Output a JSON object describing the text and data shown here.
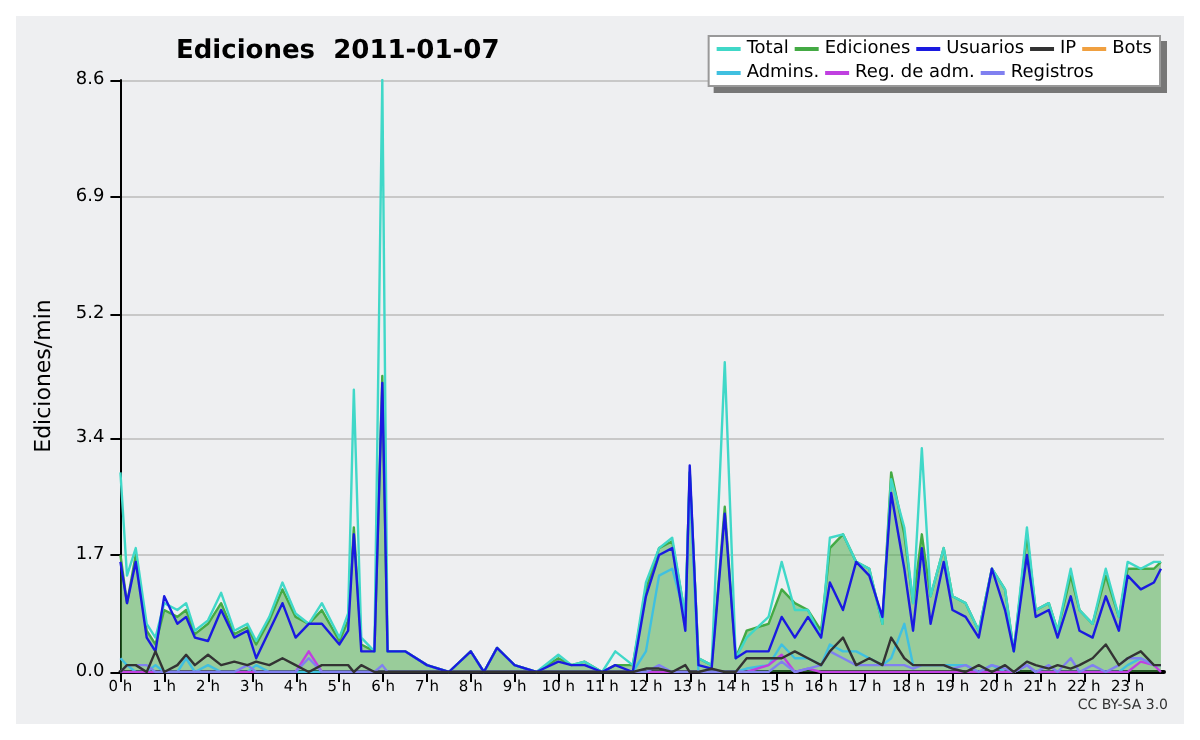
{
  "chart_data": {
    "type": "line",
    "title": "Ediciones  2011-01-07",
    "ylabel": "Ediciones/min",
    "marker": "none",
    "grid": "y",
    "legend": "top right",
    "annotations": [
      "CC BY-SA 3.0"
    ],
    "xlim": [
      0,
      23.83
    ],
    "xticks": [
      {
        "value": 0,
        "label": "0 h"
      },
      {
        "value": 1,
        "label": "1 h"
      },
      {
        "value": 2,
        "label": "2 h"
      },
      {
        "value": 3,
        "label": "3 h"
      },
      {
        "value": 4,
        "label": "4 h"
      },
      {
        "value": 5,
        "label": "5 h"
      },
      {
        "value": 6,
        "label": "6 h"
      },
      {
        "value": 7,
        "label": "7 h"
      },
      {
        "value": 8,
        "label": "8 h"
      },
      {
        "value": 9,
        "label": "9 h"
      },
      {
        "value": 10,
        "label": "10 h"
      },
      {
        "value": 11,
        "label": "11 h"
      },
      {
        "value": 12,
        "label": "12 h"
      },
      {
        "value": 13,
        "label": "13 h"
      },
      {
        "value": 14,
        "label": "14 h"
      },
      {
        "value": 15,
        "label": "15 h"
      },
      {
        "value": 16,
        "label": "16 h"
      },
      {
        "value": 17,
        "label": "17 h"
      },
      {
        "value": 18,
        "label": "18 h"
      },
      {
        "value": 19,
        "label": "19 h"
      },
      {
        "value": 20,
        "label": "20 h"
      },
      {
        "value": 21,
        "label": "21 h"
      },
      {
        "value": 22,
        "label": "22 h"
      },
      {
        "value": 23,
        "label": "23 h"
      }
    ],
    "ylim": [
      0,
      8.6
    ],
    "yticks": [
      {
        "value": 0,
        "label": "0.0"
      },
      1.7,
      3.4,
      5.2,
      6.9,
      8.6
    ],
    "x": [
      0,
      0.15,
      0.35,
      0.6,
      0.8,
      1.0,
      1.3,
      1.5,
      1.7,
      2.0,
      2.3,
      2.6,
      2.9,
      3.1,
      3.4,
      3.7,
      4.0,
      4.3,
      4.6,
      5.0,
      5.2,
      5.33,
      5.5,
      5.8,
      5.98,
      6.1,
      6.5,
      7.0,
      7.5,
      8.0,
      8.3,
      8.6,
      9.0,
      9.5,
      10.0,
      10.3,
      10.6,
      11.0,
      11.3,
      11.7,
      12.0,
      12.3,
      12.6,
      12.9,
      13.0,
      13.2,
      13.5,
      13.8,
      14.05,
      14.3,
      14.8,
      15.1,
      15.4,
      15.7,
      16.0,
      16.2,
      16.5,
      16.8,
      17.1,
      17.4,
      17.6,
      17.9,
      18.1,
      18.3,
      18.5,
      18.8,
      19.0,
      19.3,
      19.6,
      19.9,
      20.2,
      20.4,
      20.7,
      20.9,
      21.2,
      21.4,
      21.7,
      21.9,
      22.2,
      22.5,
      22.8,
      23.0,
      23.3,
      23.6,
      23.76
    ],
    "series": [
      {
        "name": "Ediciones",
        "type": "area",
        "color": "#44aa44",
        "values": [
          1.7,
          1.0,
          1.7,
          0.6,
          0.4,
          0.9,
          0.8,
          0.9,
          0.55,
          0.7,
          1.0,
          0.55,
          0.65,
          0.4,
          0.75,
          1.2,
          0.8,
          0.7,
          0.9,
          0.45,
          0.75,
          2.1,
          0.4,
          0.3,
          4.3,
          0.3,
          0.3,
          0.1,
          0,
          0.3,
          0,
          0.35,
          0.1,
          0,
          0.2,
          0.1,
          0.15,
          0,
          0.1,
          0.1,
          1.2,
          1.8,
          1.9,
          0.8,
          2.9,
          0.2,
          0.1,
          2.4,
          0.2,
          0.6,
          0.7,
          1.2,
          1.0,
          0.9,
          0.6,
          1.8,
          2.0,
          1.6,
          1.5,
          0.7,
          2.9,
          2.0,
          1.0,
          2.0,
          1.1,
          1.8,
          1.1,
          1.0,
          0.6,
          1.5,
          1.2,
          0.3,
          2.0,
          0.9,
          1.0,
          0.6,
          1.4,
          0.9,
          0.7,
          1.4,
          0.8,
          1.5,
          1.5,
          1.5,
          1.6
        ]
      },
      {
        "name": "Total",
        "color": "#40d8c8",
        "values": [
          2.9,
          1.4,
          1.8,
          0.7,
          0.5,
          1.0,
          0.9,
          1.0,
          0.6,
          0.75,
          1.15,
          0.6,
          0.7,
          0.45,
          0.8,
          1.3,
          0.85,
          0.7,
          1.0,
          0.5,
          0.85,
          4.1,
          0.5,
          0.3,
          8.6,
          0.3,
          0.3,
          0.1,
          0,
          0.3,
          0,
          0.35,
          0.1,
          0,
          0.25,
          0.1,
          0.15,
          0,
          0.3,
          0.1,
          1.3,
          1.8,
          1.95,
          0.8,
          2.9,
          0.2,
          0.1,
          4.5,
          0.2,
          0.5,
          0.8,
          1.6,
          0.9,
          0.9,
          0.5,
          1.95,
          2.0,
          1.6,
          1.5,
          0.7,
          2.8,
          2.1,
          1.0,
          3.25,
          1.1,
          1.8,
          1.1,
          1.0,
          0.6,
          1.5,
          1.2,
          0.3,
          2.1,
          0.9,
          1.0,
          0.6,
          1.5,
          0.9,
          0.7,
          1.5,
          0.8,
          1.6,
          1.5,
          1.6,
          1.6
        ]
      },
      {
        "name": "Bots",
        "color": "#f0a040",
        "values": [
          null,
          null,
          null,
          null,
          null,
          null,
          null,
          null,
          null,
          null,
          null,
          null,
          null,
          null,
          null,
          null,
          null,
          null,
          null,
          null,
          null,
          null,
          null,
          null,
          null,
          null,
          null,
          null,
          null,
          null,
          null,
          null,
          null,
          null,
          null,
          null,
          null,
          null,
          null,
          null,
          null,
          null,
          null,
          null,
          null,
          null,
          null,
          null,
          null,
          null,
          null,
          null,
          null,
          null,
          null,
          null,
          null,
          null,
          null,
          null,
          null,
          null,
          null,
          null,
          null,
          null,
          null,
          null,
          null,
          null,
          null,
          null,
          null,
          null,
          null,
          null,
          null,
          null,
          null,
          null,
          null,
          null,
          null,
          null,
          null
        ]
      },
      {
        "name": "Admins.",
        "color": "#40c0e0",
        "values": [
          0.2,
          0.1,
          0,
          0,
          0.1,
          0,
          0,
          0.2,
          0,
          0.1,
          0,
          0,
          0,
          0.1,
          0,
          0,
          0,
          0,
          0,
          0,
          0,
          0,
          0,
          0,
          0,
          0,
          0,
          0,
          0,
          0,
          0,
          0,
          0,
          0,
          0,
          0,
          0,
          0,
          0,
          0,
          0.3,
          1.4,
          1.5,
          0.8,
          2.8,
          0,
          0,
          0,
          0,
          0.05,
          0.1,
          0.4,
          0.2,
          0.2,
          0.1,
          0.4,
          0.3,
          0.3,
          0.2,
          0.1,
          0.2,
          0.7,
          0.1,
          0.1,
          0.1,
          0.1,
          0.1,
          0.1,
          0,
          0.1,
          0,
          0,
          0.1,
          0,
          0,
          0,
          0,
          0,
          0,
          0,
          0,
          0.1,
          0.2,
          0.1,
          0.1
        ]
      },
      {
        "name": "Reg. de adm.",
        "color": "#c040e0",
        "values": [
          0,
          0,
          0,
          0,
          0,
          0,
          0,
          0,
          0,
          0,
          0,
          0,
          0,
          0,
          0,
          0,
          0,
          0.3,
          0,
          0,
          0,
          0,
          0,
          0,
          0,
          0,
          0,
          0,
          0,
          0,
          0,
          0,
          0,
          0,
          0,
          0,
          0,
          0,
          0,
          0,
          0,
          0,
          0,
          0,
          0,
          0,
          0,
          0,
          0,
          0,
          0.1,
          0.25,
          0,
          0.05,
          0,
          0,
          0,
          0,
          0,
          0,
          0,
          0,
          0,
          0,
          0,
          0,
          0,
          0,
          0,
          0,
          0,
          0,
          0.1,
          0,
          0,
          0,
          0,
          0,
          0,
          0,
          0,
          0,
          0.15,
          0.1,
          0
        ]
      },
      {
        "name": "Registros",
        "color": "#8080f0",
        "values": [
          0,
          0.1,
          0.1,
          0.1,
          0,
          0,
          0,
          0,
          0,
          0,
          0,
          0,
          0.1,
          0,
          0,
          0,
          0,
          0.2,
          0,
          0,
          0,
          0,
          0,
          0,
          0.1,
          0,
          0,
          0,
          0,
          0,
          0,
          0,
          0,
          0,
          0,
          0,
          0,
          0,
          0,
          0,
          0,
          0.1,
          0,
          0,
          0,
          0,
          0,
          0,
          0,
          0,
          0,
          0.15,
          0,
          0.05,
          0.1,
          0.3,
          0.2,
          0.1,
          0.1,
          0.1,
          0.1,
          0.1,
          0.05,
          0.1,
          0.1,
          0.1,
          0.05,
          0.1,
          0,
          0.1,
          0.05,
          0,
          0.1,
          0,
          0.1,
          0,
          0.2,
          0,
          0.1,
          0,
          0.1,
          0.2,
          0.2,
          0.1,
          0.1
        ]
      },
      {
        "name": "Usuarios",
        "color": "#1a1ae0",
        "values": [
          1.6,
          1.0,
          1.6,
          0.5,
          0.3,
          1.1,
          0.7,
          0.8,
          0.5,
          0.45,
          0.9,
          0.5,
          0.6,
          0.2,
          0.6,
          1.0,
          0.5,
          0.7,
          0.7,
          0.4,
          0.6,
          2.0,
          0.3,
          0.3,
          4.2,
          0.3,
          0.3,
          0.1,
          0,
          0.3,
          0,
          0.35,
          0.1,
          0,
          0.15,
          0.1,
          0.1,
          0,
          0.1,
          0,
          1.1,
          1.7,
          1.8,
          0.6,
          3.0,
          0.1,
          0.05,
          2.3,
          0.2,
          0.3,
          0.3,
          0.8,
          0.5,
          0.8,
          0.5,
          1.3,
          0.9,
          1.6,
          1.4,
          0.8,
          2.6,
          1.5,
          0.6,
          1.8,
          0.7,
          1.6,
          0.9,
          0.8,
          0.5,
          1.5,
          0.9,
          0.3,
          1.7,
          0.8,
          0.9,
          0.5,
          1.1,
          0.6,
          0.5,
          1.1,
          0.6,
          1.4,
          1.2,
          1.3,
          1.5
        ]
      },
      {
        "name": "IP",
        "color": "#333333",
        "values": [
          0,
          0.1,
          0.1,
          0,
          0.3,
          0,
          0.1,
          0.25,
          0.1,
          0.25,
          0.1,
          0.15,
          0.1,
          0.15,
          0.1,
          0.2,
          0.1,
          0,
          0.1,
          0.1,
          0.1,
          0,
          0.1,
          0,
          0,
          0,
          0,
          0,
          0,
          0,
          0,
          0,
          0,
          0,
          0,
          0,
          0,
          0,
          0,
          0,
          0.05,
          0.05,
          0,
          0.1,
          0,
          0,
          0.05,
          0,
          0,
          0.2,
          0.2,
          0.2,
          0.3,
          0.2,
          0.1,
          0.3,
          0.5,
          0.1,
          0.2,
          0.1,
          0.5,
          0.2,
          0.1,
          0.1,
          0.1,
          0.1,
          0.05,
          0,
          0.1,
          0,
          0.1,
          0,
          0.15,
          0.1,
          0.05,
          0.1,
          0.05,
          0.1,
          0.2,
          0.4,
          0.1,
          0.2,
          0.3,
          0.1,
          0.1
        ]
      }
    ]
  }
}
